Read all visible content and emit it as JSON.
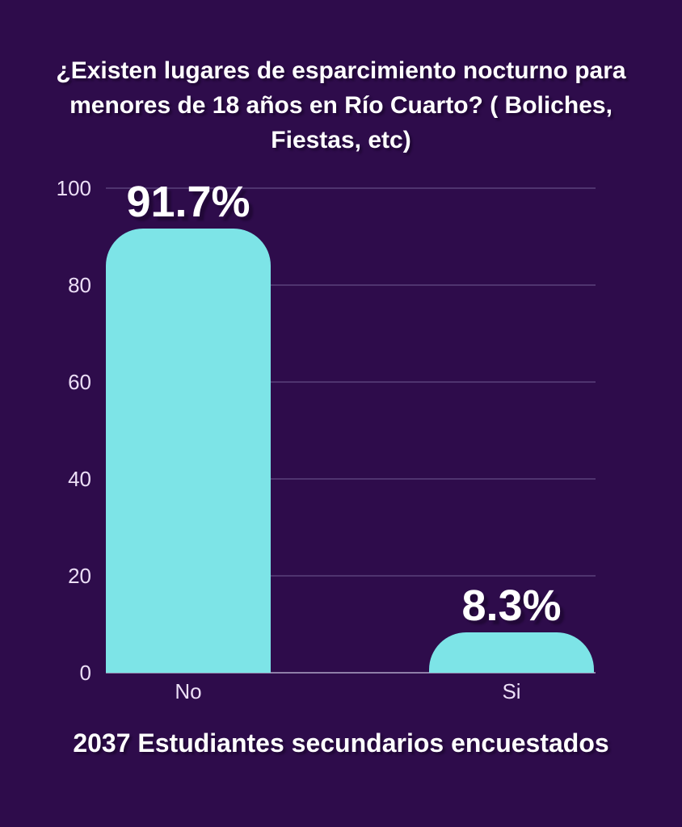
{
  "page": {
    "title": "¿Existen lugares de esparcimiento nocturno para menores de 18 años en Río Cuarto? ( Boliches, Fiestas, etc)",
    "footer": "2037 Estudiantes secundarios encuestados"
  },
  "colors": {
    "background": "#2e0c4b",
    "bar_fill": "#7de4e7",
    "axis_label": "#ecdff6",
    "gridline": "#4f346f",
    "baseline": "#8f7fa8",
    "text": "#ffffff"
  },
  "chart_data": {
    "type": "bar",
    "title": "¿Existen lugares de esparcimiento nocturno para menores de 18 años en Río Cuarto? ( Boliches, Fiestas, etc)",
    "subtitle": "2037 Estudiantes secundarios encuestados",
    "categories": [
      "No",
      "Si"
    ],
    "values": [
      91.7,
      8.3
    ],
    "value_labels": [
      "91.7%",
      "8.3%"
    ],
    "yticks": [
      0,
      20,
      40,
      60,
      80,
      100
    ],
    "ylim": [
      0,
      100
    ],
    "grid": true,
    "legend": false,
    "xlabel": "",
    "ylabel": ""
  }
}
